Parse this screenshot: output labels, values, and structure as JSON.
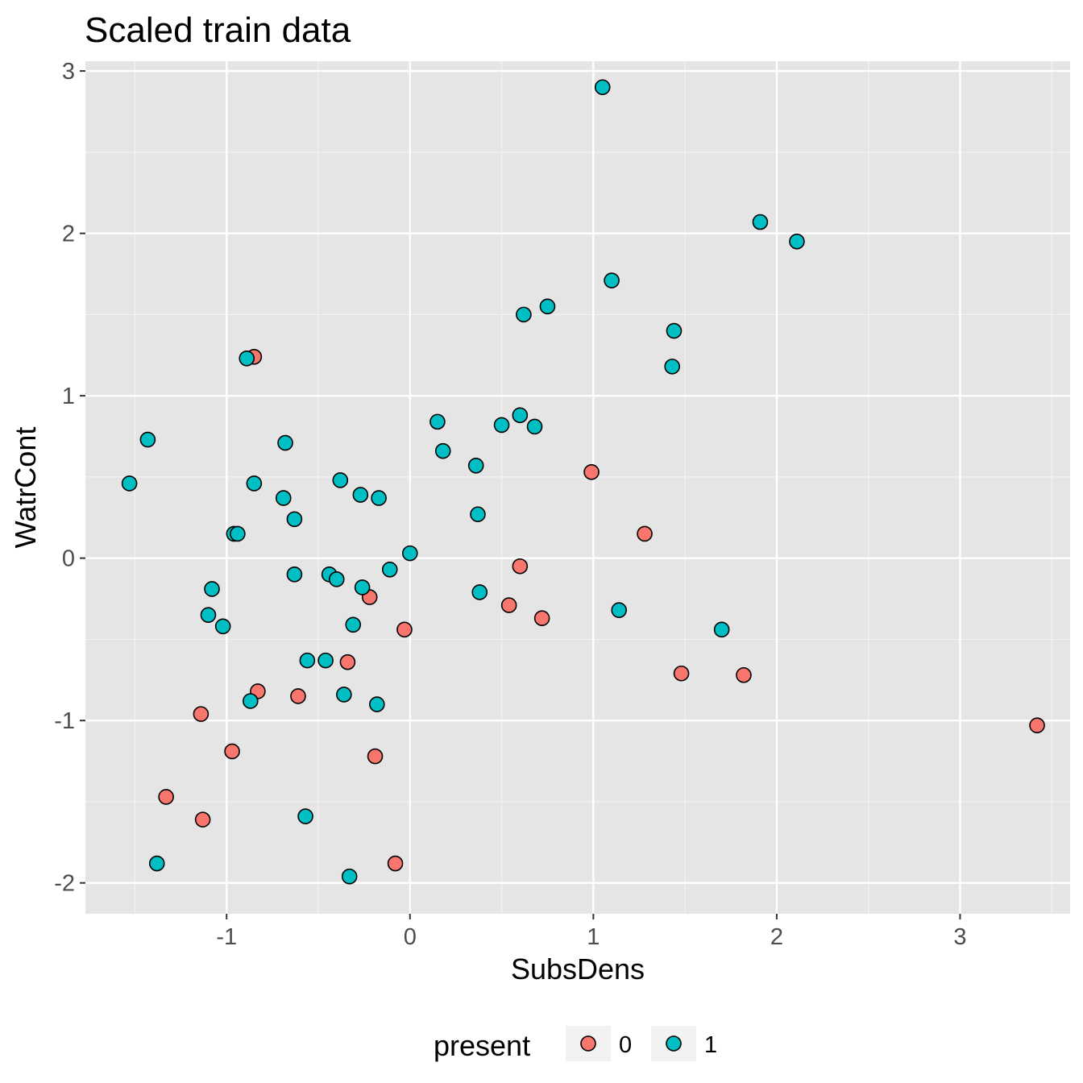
{
  "chart_data": {
    "type": "scatter",
    "title": "Scaled train data",
    "xlabel": "SubsDens",
    "ylabel": "WatrCont",
    "xlim": [
      -1.77,
      3.6
    ],
    "ylim": [
      -2.19,
      3.06
    ],
    "x_ticks": [
      -1,
      0,
      1,
      2,
      3
    ],
    "y_ticks": [
      -2,
      -1,
      0,
      1,
      2,
      3
    ],
    "grid": true,
    "background": "#e5e5e5",
    "legend": {
      "title": "present",
      "position": "bottom",
      "entries": [
        {
          "label": "0",
          "color": "#f8766d"
        },
        {
          "label": "1",
          "color": "#00bfc4"
        }
      ]
    },
    "series": [
      {
        "name": "0",
        "color": "#f8766d",
        "points": [
          [
            -0.85,
            1.24
          ],
          [
            0.99,
            0.53
          ],
          [
            1.28,
            0.15
          ],
          [
            0.6,
            -0.05
          ],
          [
            -0.22,
            -0.24
          ],
          [
            0.54,
            -0.29
          ],
          [
            0.72,
            -0.37
          ],
          [
            -0.03,
            -0.44
          ],
          [
            -0.34,
            -0.64
          ],
          [
            -0.83,
            -0.82
          ],
          [
            -0.61,
            -0.85
          ],
          [
            -1.14,
            -0.96
          ],
          [
            1.48,
            -0.71
          ],
          [
            1.82,
            -0.72
          ],
          [
            3.42,
            -1.03
          ],
          [
            -0.97,
            -1.19
          ],
          [
            -0.19,
            -1.22
          ],
          [
            -1.33,
            -1.47
          ],
          [
            -1.13,
            -1.61
          ],
          [
            -0.08,
            -1.88
          ]
        ]
      },
      {
        "name": "1",
        "color": "#00bfc4",
        "points": [
          [
            1.05,
            2.9
          ],
          [
            1.91,
            2.07
          ],
          [
            2.11,
            1.95
          ],
          [
            1.1,
            1.71
          ],
          [
            0.75,
            1.55
          ],
          [
            0.62,
            1.5
          ],
          [
            1.44,
            1.4
          ],
          [
            1.43,
            1.18
          ],
          [
            -0.89,
            1.23
          ],
          [
            0.15,
            0.84
          ],
          [
            0.6,
            0.88
          ],
          [
            0.5,
            0.82
          ],
          [
            0.68,
            0.81
          ],
          [
            0.18,
            0.66
          ],
          [
            -1.43,
            0.73
          ],
          [
            -0.68,
            0.71
          ],
          [
            0.36,
            0.57
          ],
          [
            -1.53,
            0.46
          ],
          [
            -0.85,
            0.46
          ],
          [
            -0.38,
            0.48
          ],
          [
            -0.27,
            0.39
          ],
          [
            -0.17,
            0.37
          ],
          [
            -0.69,
            0.37
          ],
          [
            0.37,
            0.27
          ],
          [
            -0.63,
            0.24
          ],
          [
            -0.96,
            0.15
          ],
          [
            -0.94,
            0.15
          ],
          [
            0.0,
            0.03
          ],
          [
            -0.11,
            -0.07
          ],
          [
            -0.63,
            -0.1
          ],
          [
            -0.44,
            -0.1
          ],
          [
            -0.4,
            -0.13
          ],
          [
            -0.26,
            -0.18
          ],
          [
            -1.08,
            -0.19
          ],
          [
            0.38,
            -0.21
          ],
          [
            1.14,
            -0.32
          ],
          [
            -1.1,
            -0.35
          ],
          [
            -1.02,
            -0.42
          ],
          [
            -0.31,
            -0.41
          ],
          [
            1.7,
            -0.44
          ],
          [
            -0.56,
            -0.63
          ],
          [
            -0.46,
            -0.63
          ],
          [
            -0.36,
            -0.84
          ],
          [
            -0.87,
            -0.88
          ],
          [
            -0.18,
            -0.9
          ],
          [
            -0.57,
            -1.59
          ],
          [
            -1.38,
            -1.88
          ],
          [
            -0.33,
            -1.96
          ]
        ]
      }
    ]
  }
}
